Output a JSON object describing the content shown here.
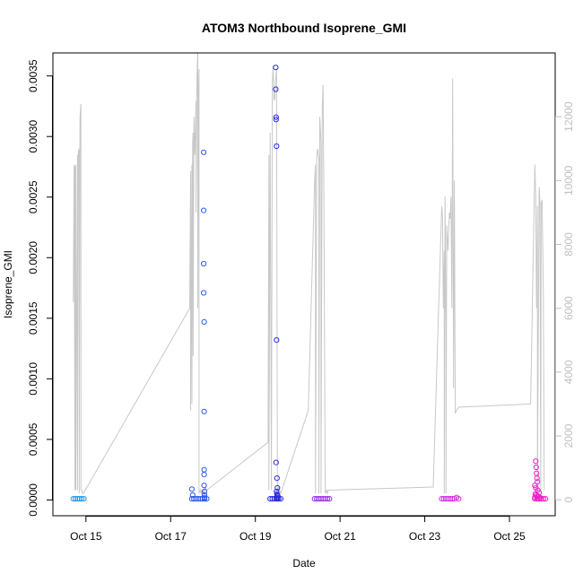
{
  "chart_data": {
    "type": "scatter",
    "title": "ATOM3 Northbound Isoprene_GMI",
    "xlabel": "Date",
    "ylabel": "Isoprene_GMI",
    "x_ticks": [
      "Oct 15",
      "Oct 17",
      "Oct 19",
      "Oct 21",
      "Oct 23",
      "Oct 25"
    ],
    "x_tick_days": [
      15,
      17,
      19,
      21,
      23,
      25
    ],
    "xlim_days": [
      14.22,
      26.08
    ],
    "ylim": [
      -0.00013,
      0.00369
    ],
    "y_ticks": [
      0.0,
      0.0005,
      0.001,
      0.0015,
      0.002,
      0.0025,
      0.003,
      0.0035
    ],
    "y_tick_labels": [
      "0.0000",
      "0.0005",
      "0.0010",
      "0.0015",
      "0.0020",
      "0.0025",
      "0.0030",
      "0.0035"
    ],
    "y2_ticks": [
      0,
      2000,
      4000,
      6000,
      8000,
      10000,
      12000
    ],
    "y2lim": [
      -500,
      14000
    ],
    "grid": false,
    "colors": {
      "altitude_line": "#c8c8c8",
      "right_axis": "#bfbfbf",
      "flight1": "#1e9be8",
      "flight2": "#2a5ae6",
      "flight3": "#2a2ae0",
      "flight4": "#9a2ee8",
      "flight5": "#d42ee0",
      "flight6": "#f01ec8"
    },
    "series": [
      {
        "color_key": "flight1",
        "values_day": [
          14.7,
          14.75,
          14.8,
          14.85,
          14.9,
          14.95
        ],
        "values": [
          1e-05,
          1e-05,
          1e-05,
          1e-05,
          1e-05,
          1e-05
        ]
      },
      {
        "color_key": "flight2",
        "values_day": [
          17.5,
          17.55,
          17.6,
          17.65,
          17.7,
          17.75,
          17.8,
          17.85,
          17.5,
          17.52,
          17.78,
          17.78,
          17.78,
          17.78,
          17.79,
          17.79,
          17.79,
          17.79,
          17.79,
          17.8,
          17.8,
          17.8,
          17.8
        ],
        "values": [
          1e-05,
          1e-05,
          1e-05,
          1e-05,
          1e-05,
          1e-05,
          1e-05,
          1e-05,
          9e-05,
          4e-05,
          0.00287,
          0.00239,
          0.00195,
          0.00171,
          0.00147,
          0.00073,
          0.00025,
          0.00021,
          0.00012,
          7e-05,
          4e-05,
          2e-05,
          1e-05
        ]
      },
      {
        "color_key": "flight3",
        "values_day": [
          19.35,
          19.4,
          19.45,
          19.5,
          19.55,
          19.6,
          19.48,
          19.48,
          19.49,
          19.49,
          19.5,
          19.5,
          19.49,
          19.51,
          19.52,
          19.5,
          19.51,
          19.52,
          19.53,
          19.5,
          19.52
        ],
        "values": [
          1e-05,
          1e-05,
          1e-05,
          1e-05,
          1e-05,
          1e-05,
          0.00357,
          0.00339,
          0.00316,
          0.00314,
          0.00292,
          0.00132,
          0.00031,
          0.00018,
          0.0001,
          7e-05,
          5e-05,
          4e-05,
          3e-05,
          2e-05,
          1e-05
        ]
      },
      {
        "color_key": "flight4",
        "values_day": [
          20.4,
          20.45,
          20.5,
          20.55,
          20.6,
          20.65,
          20.7,
          20.75
        ],
        "values": [
          1e-05,
          1e-05,
          1e-05,
          1e-05,
          1e-05,
          1e-05,
          1e-05,
          1e-05
        ]
      },
      {
        "color_key": "flight5",
        "values_day": [
          23.4,
          23.45,
          23.5,
          23.55,
          23.6,
          23.65,
          23.7,
          23.75,
          23.8
        ],
        "values": [
          1e-05,
          1e-05,
          1e-05,
          1e-05,
          1e-05,
          1e-05,
          1e-05,
          2e-05,
          1e-05
        ]
      },
      {
        "color_key": "flight6",
        "values_day": [
          25.6,
          25.65,
          25.7,
          25.75,
          25.8,
          25.85,
          25.62,
          25.63,
          25.64,
          25.65,
          25.66,
          25.6,
          25.62,
          25.67,
          25.7,
          25.61,
          25.63,
          25.65,
          25.68,
          25.72,
          25.6,
          25.66
        ],
        "values": [
          1e-05,
          1e-05,
          1e-05,
          1e-05,
          1e-05,
          1e-05,
          0.00032,
          0.00027,
          0.00022,
          0.00018,
          0.00015,
          0.00012,
          0.0001,
          8e-05,
          6e-05,
          5e-05,
          4e-05,
          3e-05,
          3e-05,
          2e-05,
          2e-05,
          1e-05
        ]
      }
    ],
    "altitude": {
      "x_day": [
        14.7,
        14.72,
        14.74,
        14.74,
        14.76,
        14.76,
        14.8,
        14.8,
        14.82,
        14.84,
        14.84,
        14.86,
        14.88,
        14.88,
        14.9,
        14.92,
        14.94,
        17.45,
        17.47,
        17.47,
        17.5,
        17.5,
        17.52,
        17.53,
        17.53,
        17.55,
        17.57,
        17.6,
        17.6,
        17.62,
        17.64,
        17.64,
        17.66,
        17.67,
        17.67,
        17.7,
        17.72,
        17.74,
        17.74,
        17.76,
        17.78,
        17.78,
        17.8,
        17.82,
        17.85,
        19.3,
        19.32,
        19.32,
        19.35,
        19.38,
        19.4,
        19.42,
        19.44,
        19.46,
        19.48,
        19.5,
        19.52,
        19.55,
        19.6,
        20.25,
        20.4,
        20.42,
        20.42,
        20.45,
        20.47,
        20.5,
        20.5,
        20.52,
        20.55,
        20.55,
        20.58,
        20.6,
        20.62,
        20.65,
        20.68,
        20.7,
        20.72,
        23.2,
        23.4,
        23.42,
        23.44,
        23.46,
        23.46,
        23.48,
        23.5,
        23.5,
        23.52,
        23.55,
        23.58,
        23.6,
        23.62,
        23.64,
        23.66,
        23.68,
        23.7,
        23.72,
        23.75,
        23.8,
        25.5,
        25.6,
        25.62,
        25.64,
        25.66,
        25.66,
        25.7,
        25.72,
        25.74,
        25.75,
        25.77,
        25.8,
        25.82
      ],
      "y": [
        6200,
        10500,
        300,
        10400,
        10500,
        300,
        10800,
        300,
        10900,
        11000,
        200,
        12000,
        12400,
        300,
        300,
        200,
        200,
        6000,
        10300,
        2800,
        10500,
        3000,
        11200,
        11500,
        4500,
        12000,
        10800,
        12500,
        9000,
        13200,
        14000,
        6000,
        12800,
        13500,
        200,
        300,
        200,
        300,
        200,
        300,
        200,
        300,
        200,
        400,
        300,
        1800,
        10800,
        300,
        11500,
        300,
        13000,
        13600,
        12500,
        12600,
        13200,
        13500,
        300,
        400,
        200,
        2800,
        10000,
        10500,
        200,
        10800,
        11000,
        10700,
        200,
        12000,
        11200,
        200,
        12300,
        13000,
        9000,
        200,
        300,
        200,
        300,
        400,
        9200,
        8800,
        6000,
        7800,
        200,
        9500,
        5200,
        200,
        8600,
        7800,
        9000,
        8800,
        9500,
        6000,
        13200,
        3500,
        10000,
        2700,
        2800,
        2900,
        3000,
        10500,
        9500,
        6000,
        9200,
        200,
        9800,
        9300,
        300,
        9300,
        9400,
        6500,
        300
      ]
    }
  }
}
